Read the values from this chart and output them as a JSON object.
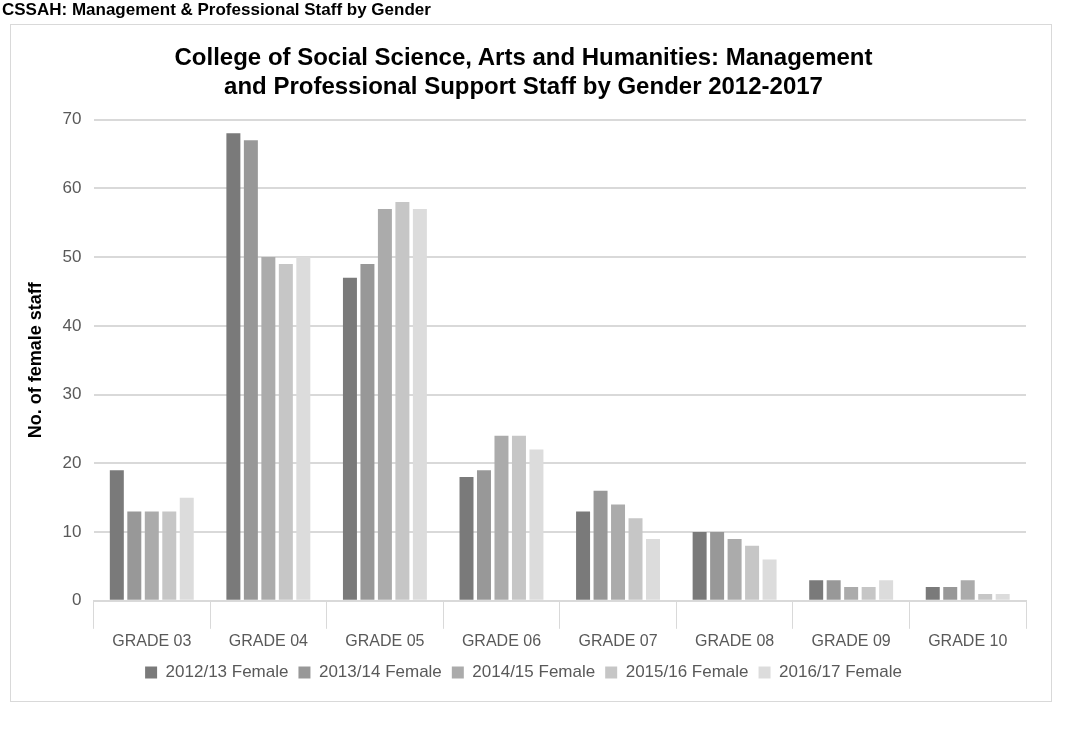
{
  "chart_data": {
    "type": "bar",
    "title": [
      "College of Social Science, Arts and Humanities: Management",
      "and Professional Support Staff by Gender 2012-2017"
    ],
    "ylabel": "No. of female staff",
    "annotations": [
      "CSSAH: Management & Professional Staff by Gender"
    ],
    "categories": [
      "GRADE 03",
      "GRADE 04",
      "GRADE 05",
      "GRADE 06",
      "GRADE 07",
      "GRADE 08",
      "GRADE 09",
      "GRADE 10"
    ],
    "series": [
      {
        "name": "2012/13 Female",
        "color": "#7a7a7a",
        "values": [
          19,
          68,
          47,
          18,
          13,
          10,
          3,
          2
        ]
      },
      {
        "name": "2013/14 Female",
        "color": "#989898",
        "values": [
          13,
          67,
          49,
          19,
          16,
          10,
          3,
          2
        ]
      },
      {
        "name": "2014/15 Female",
        "color": "#ababab",
        "values": [
          13,
          50,
          57,
          24,
          14,
          9,
          2,
          3
        ]
      },
      {
        "name": "2015/16 Female",
        "color": "#c6c6c6",
        "values": [
          13,
          49,
          58,
          24,
          12,
          8,
          2,
          1
        ]
      },
      {
        "name": "2016/17 Female",
        "color": "#dcdcdc",
        "values": [
          15,
          50,
          57,
          22,
          9,
          6,
          3,
          1
        ]
      }
    ],
    "ylim": [
      0,
      70
    ],
    "yticks": [
      0,
      10,
      20,
      30,
      40,
      50,
      60,
      70
    ],
    "grid": "y",
    "legend": "bottom"
  }
}
